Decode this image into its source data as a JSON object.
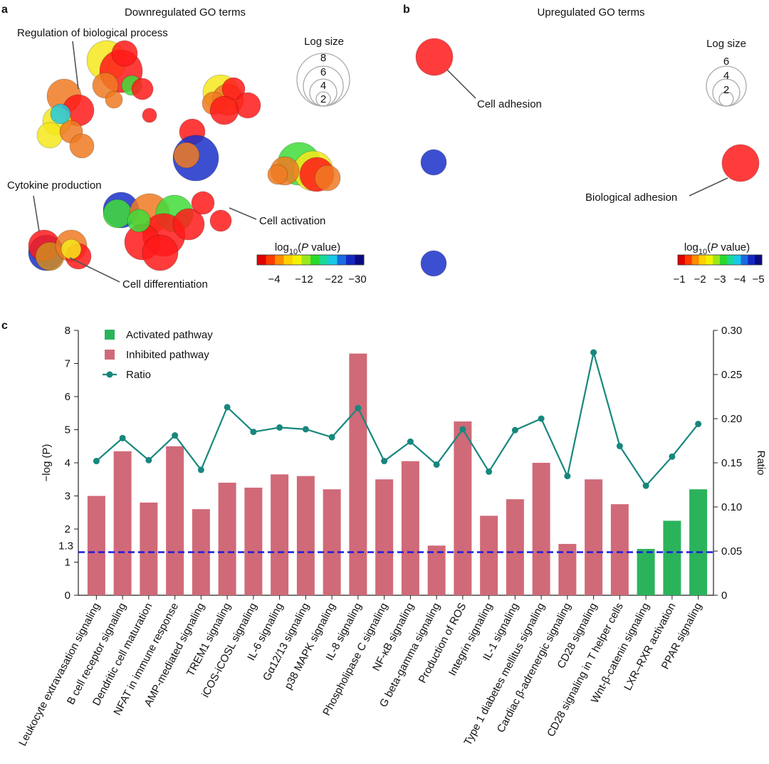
{
  "panel_a": {
    "label": "a",
    "title": "Downregulated GO terms",
    "annotations": [
      "Regulation of biological process",
      "Cytokine production",
      "Cell activation",
      "Cell differentiation"
    ],
    "size_legend": {
      "title": "Log size",
      "ticks": [
        8,
        6,
        4,
        2
      ]
    },
    "colorbar": {
      "title": [
        "log",
        "10",
        "(",
        "P",
        " value)"
      ],
      "ticks": [
        {
          "value": -4,
          "label": "−4"
        },
        {
          "value": -12,
          "label": "−12"
        },
        {
          "value": -22,
          "label": "−22"
        },
        {
          "value": -30,
          "label": "−30"
        }
      ]
    }
  },
  "panel_b": {
    "label": "b",
    "title": "Upregulated GO terms",
    "annotations": [
      "Cell adhesion",
      "Biological adhesion"
    ],
    "size_legend": {
      "title": "Log size",
      "ticks": [
        6,
        4,
        2
      ]
    },
    "colorbar": {
      "title": [
        "log",
        "10",
        "(",
        "P",
        " value)"
      ],
      "ticks": [
        {
          "value": -1,
          "label": "−1"
        },
        {
          "value": -2,
          "label": "−2"
        },
        {
          "value": -3,
          "label": "−3"
        },
        {
          "value": -4,
          "label": "−4"
        },
        {
          "value": -5,
          "label": "−5"
        }
      ]
    }
  },
  "chart_data": {
    "type": "bar",
    "label": "c",
    "y_label": "−log (P)",
    "y2_label": "Ratio",
    "categories": [
      "Leukocyte extravasation signaling",
      "B cell receptor signaling",
      "Dendritic cell maturation",
      "NFAT in immune response",
      "AMP-mediated signaling",
      "TREM1 signaling",
      "iCOS-iCOSL signaling",
      "IL-6 signaling",
      "Gα12/13 signaling",
      "p38 MAPK signaling",
      "IL-8 signaling",
      "Phospholipase C signaling",
      "NF-κB signaling",
      "G beta-gamma signaling",
      "Production of ROS",
      "Integrin signaling",
      "IL-1 signaling",
      "Type 1 diabetes mellitus signaling",
      "Cardiac β-adrenergic signaling",
      "CD28 signaling",
      "CD28 signaling in T helper cells",
      "Wnt-β-catenin signaling",
      "LXR–RXR activation",
      "PPAR signaling"
    ],
    "series": [
      {
        "name": "Activated pathway",
        "color": "#2bb35c",
        "values": [
          null,
          null,
          null,
          null,
          null,
          null,
          null,
          null,
          null,
          null,
          null,
          null,
          null,
          null,
          null,
          null,
          null,
          null,
          null,
          null,
          null,
          1.4,
          2.25,
          3.2
        ]
      },
      {
        "name": "Inhibited pathway",
        "color": "#d06a78",
        "values": [
          3.0,
          4.35,
          2.8,
          4.5,
          2.6,
          3.4,
          3.25,
          3.65,
          3.6,
          3.2,
          7.3,
          3.5,
          4.05,
          1.5,
          5.25,
          2.4,
          2.9,
          4.0,
          1.55,
          3.5,
          2.75,
          null,
          null,
          null
        ]
      },
      {
        "name": "Ratio",
        "color": "#17877d",
        "axis": "y2",
        "type": "line",
        "values": [
          0.152,
          0.178,
          0.153,
          0.181,
          0.142,
          0.213,
          0.185,
          0.19,
          0.188,
          0.179,
          0.212,
          0.152,
          0.174,
          0.148,
          0.188,
          0.14,
          0.187,
          0.2,
          0.135,
          0.275,
          0.169,
          0.124,
          0.157,
          0.194
        ]
      }
    ],
    "threshold": 1.3,
    "threshold_color": "#1a1ae0",
    "ylim": [
      0,
      8
    ],
    "yticks": [
      0,
      1,
      2,
      3,
      4,
      5,
      6,
      7,
      8
    ],
    "y2lim": [
      0,
      0.3
    ],
    "y2ticks": [
      0,
      0.05,
      {
        "value": 0.1,
        "label": "0.10"
      },
      0.15,
      {
        "value": 0.2,
        "label": "0.20"
      },
      0.25,
      {
        "value": 0.3,
        "label": "0.30"
      }
    ]
  }
}
